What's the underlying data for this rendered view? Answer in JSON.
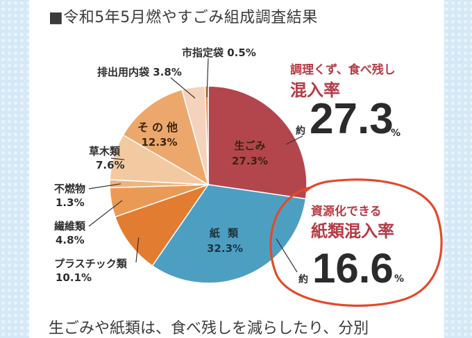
{
  "title": "■令和5年5月燃やすごみ組成調査結果",
  "chart_data": {
    "type": "pie",
    "title": "■令和5年5月燃やすごみ組成調査結果",
    "slices": [
      {
        "name": "生ごみ",
        "value": 27.3,
        "label": "27.3%",
        "color": "#b3464d"
      },
      {
        "name": "紙 類",
        "value": 32.3,
        "label": "32.3%",
        "color": "#4d9fc2"
      },
      {
        "name": "プラスチック類",
        "value": 10.1,
        "label": "10.1%",
        "color": "#e27c30"
      },
      {
        "name": "繊維類",
        "value": 4.8,
        "label": "4.8%",
        "color": "#eb9a56"
      },
      {
        "name": "不燃物",
        "value": 1.3,
        "label": "1.3%",
        "color": "#f0b37d"
      },
      {
        "name": "草木類",
        "value": 7.6,
        "label": "7.6%",
        "color": "#f3c9a2"
      },
      {
        "name": "その他",
        "value": 12.3,
        "label": "12.3%",
        "color": "#eca86c"
      },
      {
        "name": "排出用内袋",
        "value": 3.8,
        "label": "3.8%",
        "color": "#f4d2bb"
      },
      {
        "name": "市指定袋",
        "value": 0.5,
        "label": "0.5%",
        "color": "#ea8a3b"
      }
    ]
  },
  "callouts": {
    "food": {
      "line1": "調理くず、食べ残し",
      "line2": "混入率",
      "approx": "約",
      "value": "27.3",
      "unit": "%"
    },
    "paper": {
      "line1": "資源化できる",
      "line2": "紙類混入率",
      "approx": "約",
      "value": "16.6",
      "unit": "%"
    }
  },
  "body_text": "生ごみや紙類は、食べ残しを減らしたり、分別"
}
